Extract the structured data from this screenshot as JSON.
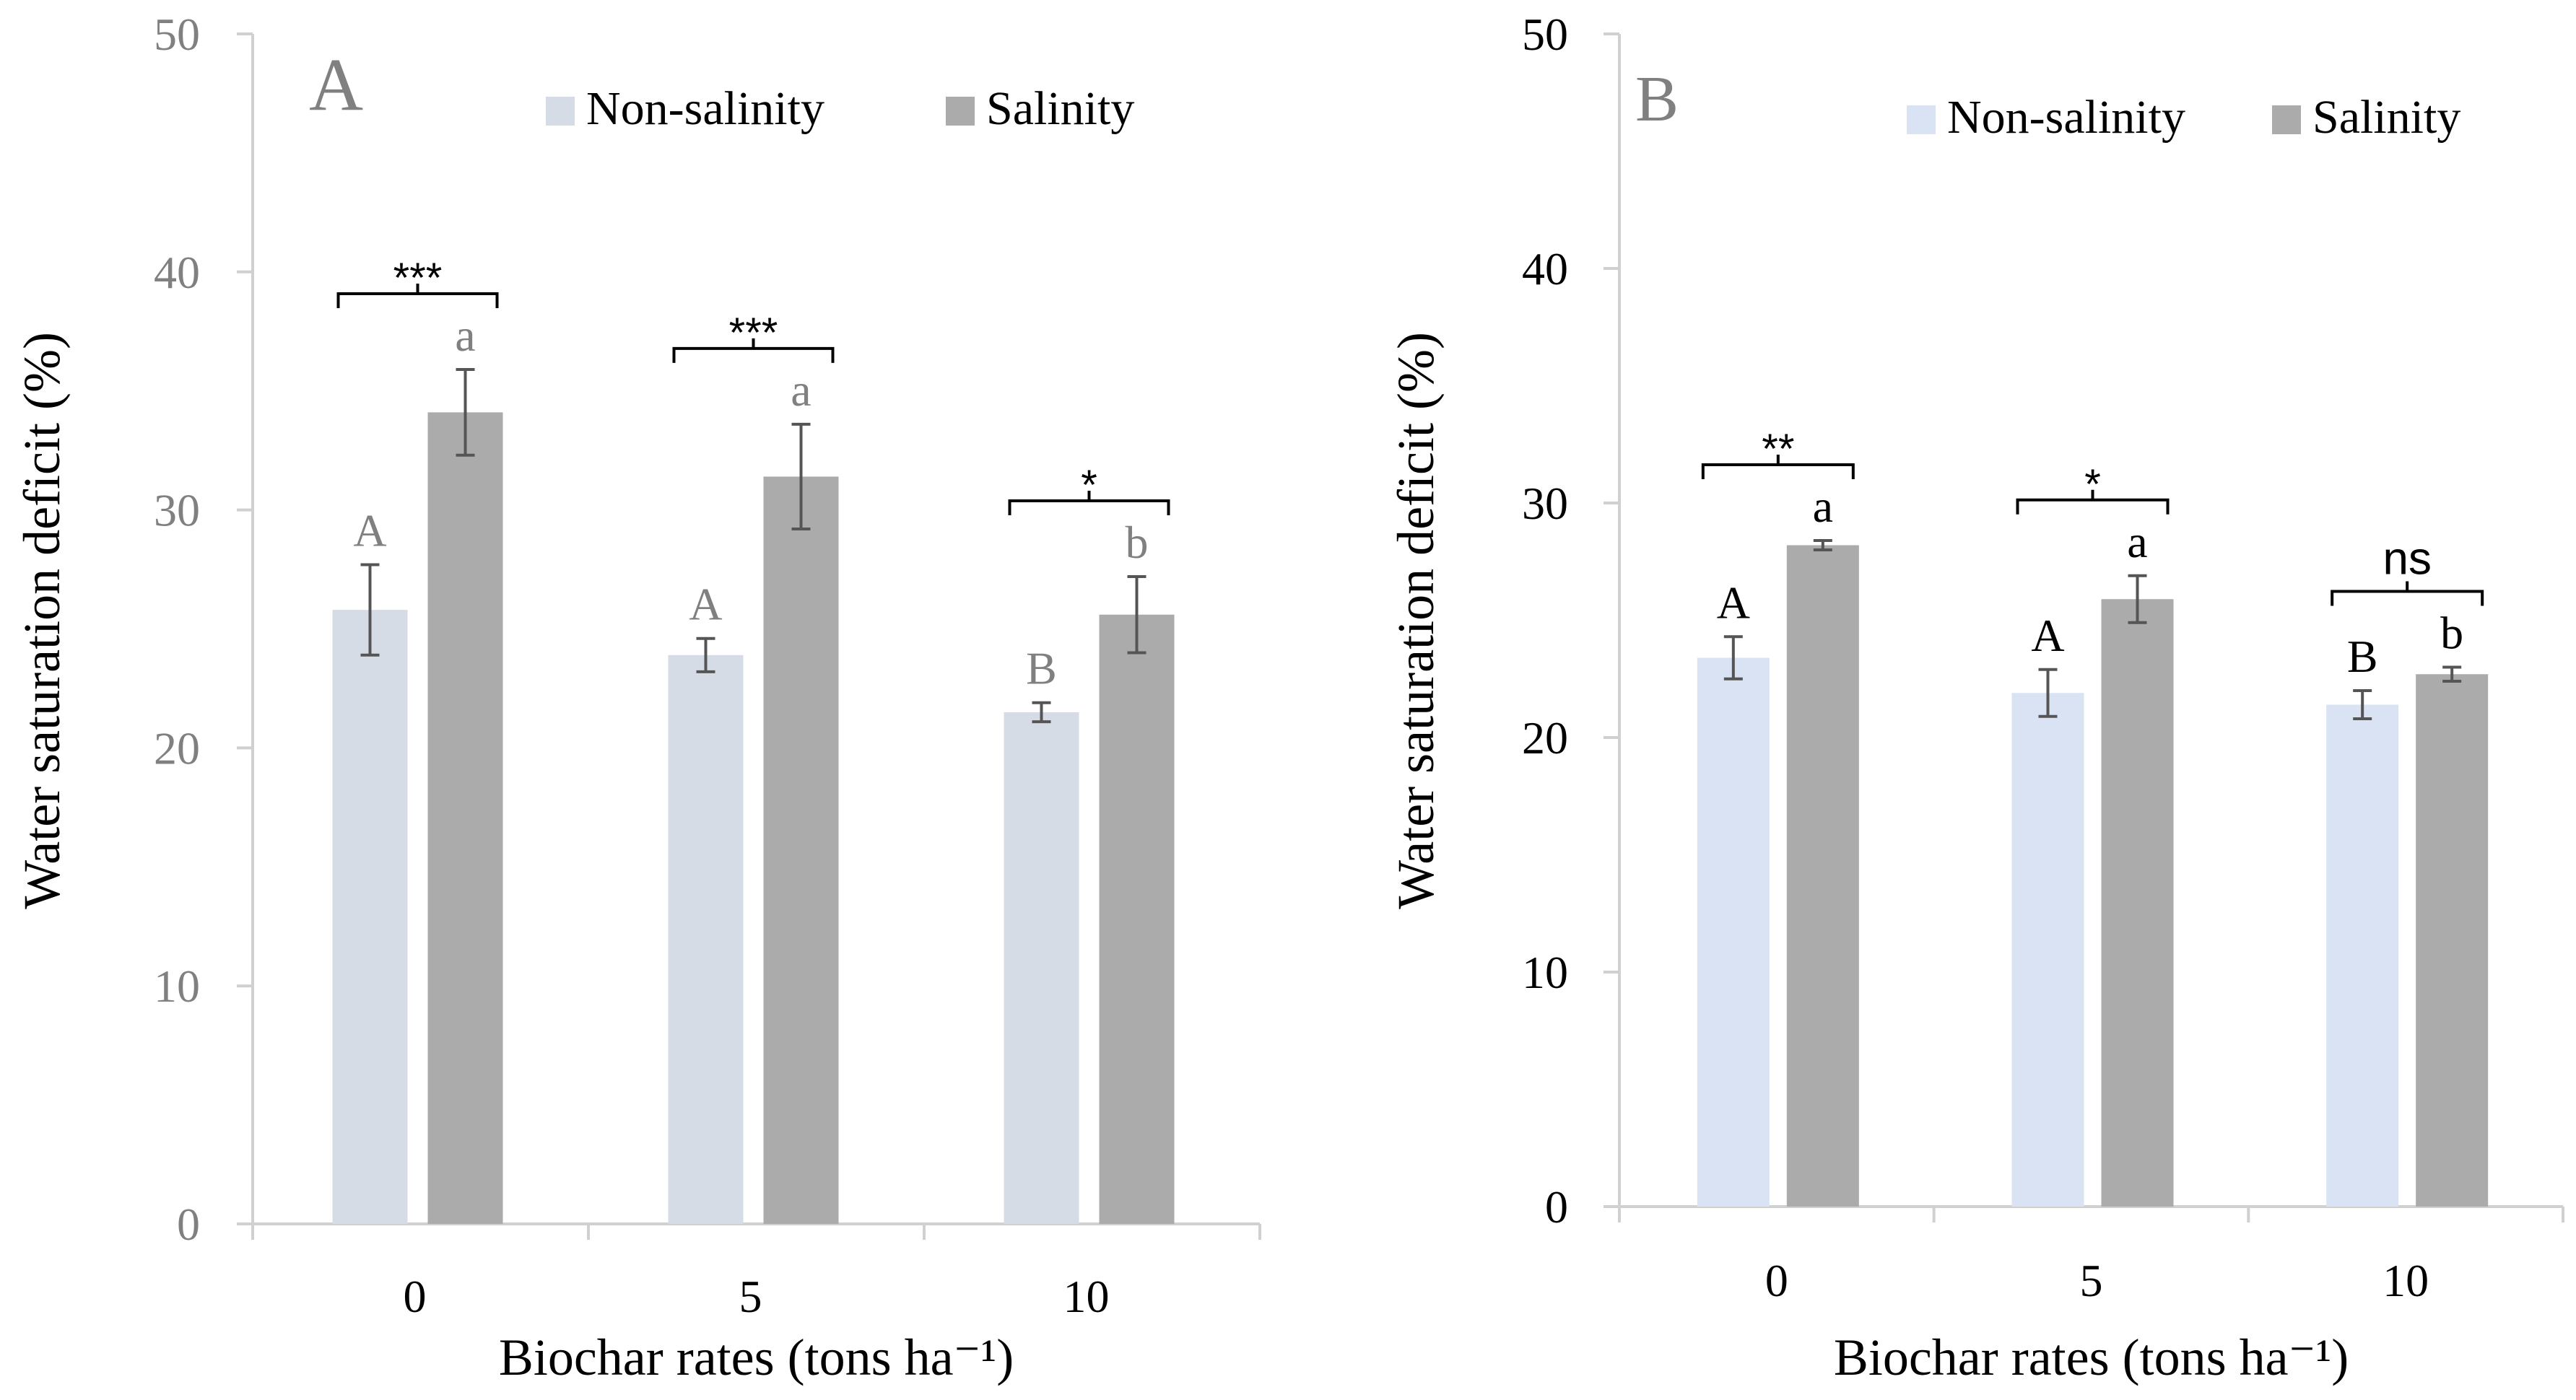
{
  "colors": {
    "panel_a_non_salinity": "#D6DCE5",
    "panel_b_non_salinity": "#DAE3F3",
    "salinity": "#ABABAB",
    "axis_gray": "#D0D0D0",
    "error_bar": "#555555",
    "panel_a_text": "#808080",
    "panel_b_text": "#404040",
    "title_text": "#000000"
  },
  "chart_data": [
    {
      "type": "bar",
      "panel_label": "A",
      "categories": [
        "0",
        "5",
        "10"
      ],
      "xlabel": "Biochar rates (tons ha⁻¹)",
      "ylabel": "Water saturation deficit (%)",
      "ylim": [
        0,
        50
      ],
      "yticks": [
        "0",
        "10",
        "20",
        "30",
        "40",
        "50"
      ],
      "legend_position": "top-center",
      "series": [
        {
          "name": "Non-salinity",
          "values": [
            25.8,
            23.9,
            21.5
          ],
          "errors": [
            1.9,
            0.7,
            0.4
          ],
          "letters": [
            "A",
            "A",
            "B"
          ]
        },
        {
          "name": "Salinity",
          "values": [
            34.1,
            31.4,
            25.6
          ],
          "errors": [
            1.8,
            2.2,
            1.6
          ],
          "letters": [
            "a",
            "a",
            "b"
          ]
        }
      ],
      "significance": [
        "***",
        "***",
        "*"
      ]
    },
    {
      "type": "bar",
      "panel_label": "B",
      "categories": [
        "0",
        "5",
        "10"
      ],
      "xlabel": "Biochar rates (tons ha⁻¹)",
      "ylabel": "Water saturation deficit (%)",
      "ylim": [
        0,
        50
      ],
      "yticks": [
        "0",
        "10",
        "20",
        "30",
        "40",
        "50"
      ],
      "legend_position": "top-center",
      "series": [
        {
          "name": "Non-salinity",
          "values": [
            23.4,
            21.9,
            21.4
          ],
          "errors": [
            0.9,
            1.0,
            0.6
          ],
          "letters": [
            "A",
            "A",
            "B"
          ]
        },
        {
          "name": "Salinity",
          "values": [
            28.2,
            25.9,
            22.7
          ],
          "errors": [
            0.2,
            1.0,
            0.3
          ],
          "letters": [
            "a",
            "a",
            "b"
          ]
        }
      ],
      "significance": [
        "**",
        "*",
        "ns"
      ]
    }
  ]
}
